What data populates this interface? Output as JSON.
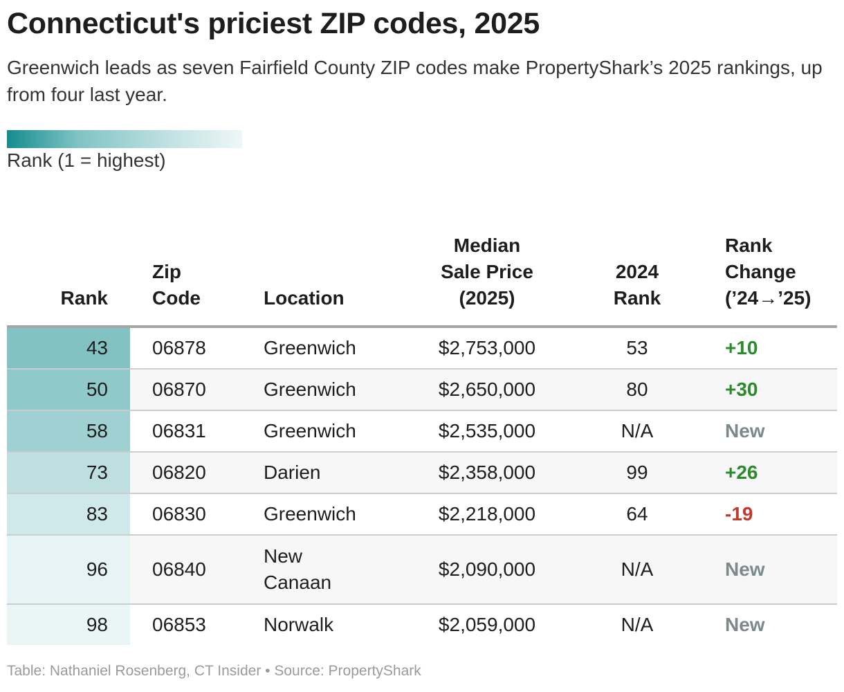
{
  "title": "Connecticut's priciest ZIP codes, 2025",
  "subtitle": "Greenwich leads as seven Fairfield County ZIP codes make PropertyShark’s 2025 rankings, up from four last year.",
  "legend": {
    "label": "Rank (1 = highest)",
    "color_high": "#148c8e",
    "color_low": "#eef7f8"
  },
  "colors": {
    "positive": "#2b8a2b",
    "negative": "#c0392b",
    "new": "#7b8a8b"
  },
  "chart_data": {
    "type": "table",
    "columns": [
      [
        "Rank"
      ],
      [
        "Zip",
        "Code"
      ],
      [
        "Location"
      ],
      [
        "Median",
        "Sale Price",
        "(2025)"
      ],
      [
        "2024",
        "Rank"
      ],
      [
        "Rank",
        "Change",
        "(’24→’25)"
      ]
    ],
    "rank_scale": [
      1,
      100
    ],
    "rows": [
      {
        "rank": "43",
        "zip": "06878",
        "location": [
          "Greenwich"
        ],
        "price": "$2,753,000",
        "rank_2024": "53",
        "change": "+10",
        "change_type": "pos",
        "rank_value": 43
      },
      {
        "rank": "50",
        "zip": "06870",
        "location": [
          "Greenwich"
        ],
        "price": "$2,650,000",
        "rank_2024": "80",
        "change": "+30",
        "change_type": "pos",
        "rank_value": 50
      },
      {
        "rank": "58",
        "zip": "06831",
        "location": [
          "Greenwich"
        ],
        "price": "$2,535,000",
        "rank_2024": "N/A",
        "change": "New",
        "change_type": "new",
        "rank_value": 58
      },
      {
        "rank": "73",
        "zip": "06820",
        "location": [
          "Darien"
        ],
        "price": "$2,358,000",
        "rank_2024": "99",
        "change": "+26",
        "change_type": "pos",
        "rank_value": 73
      },
      {
        "rank": "83",
        "zip": "06830",
        "location": [
          "Greenwich"
        ],
        "price": "$2,218,000",
        "rank_2024": "64",
        "change": "-19",
        "change_type": "neg",
        "rank_value": 83
      },
      {
        "rank": "96",
        "zip": "06840",
        "location": [
          "New",
          "Canaan"
        ],
        "price": "$2,090,000",
        "rank_2024": "N/A",
        "change": "New",
        "change_type": "new",
        "rank_value": 96
      },
      {
        "rank": "98",
        "zip": "06853",
        "location": [
          "Norwalk"
        ],
        "price": "$2,059,000",
        "rank_2024": "N/A",
        "change": "New",
        "change_type": "new",
        "rank_value": 98
      }
    ]
  },
  "source": "Table: Nathaniel Rosenberg, CT Insider • Source: PropertyShark"
}
